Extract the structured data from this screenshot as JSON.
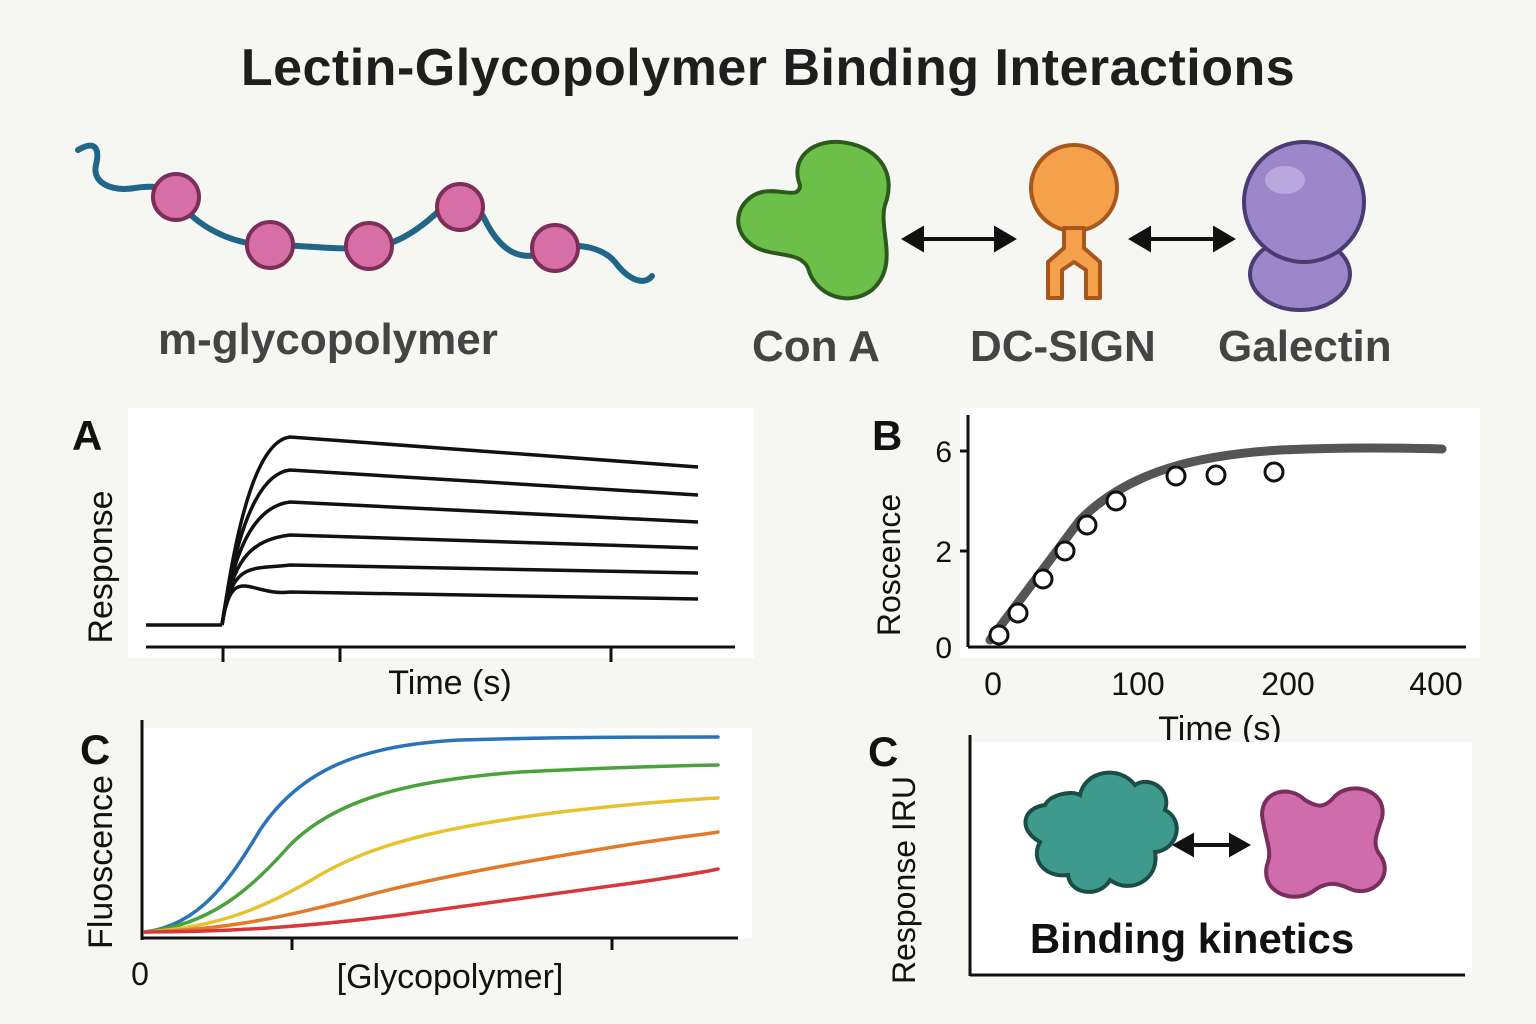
{
  "title": "Lectin-Glycopolymer Binding Interactions",
  "top": {
    "polymer_label": "m-glycopolymer",
    "lectins": [
      "Con A",
      "DC-SIGN",
      "Galectin"
    ]
  },
  "panel_a": {
    "letter": "A",
    "xlabel": "Time (s)",
    "ylabel": "Response"
  },
  "panel_b": {
    "letter": "B",
    "xlabel": "Time (s)",
    "ylabel": "Roscence",
    "xticks": [
      "0",
      "100",
      "200",
      "400"
    ],
    "yticks": [
      "0",
      "2",
      "6"
    ]
  },
  "panel_c": {
    "letter": "C",
    "xlabel": "[Glycopolymer]",
    "ylabel": "Fluoscence",
    "x0": "0"
  },
  "panel_d": {
    "letter": "C",
    "ylabel": "Response IRU",
    "caption": "Binding kinetics"
  },
  "colors": {
    "polymer_backbone": "#1f6688",
    "sugar_bead": "#d86ea6",
    "con_a": "#6cc04a",
    "dc_sign": "#f5a04a",
    "galectin": "#9b87c9",
    "teal_protein": "#3d9a8c",
    "pink_protein": "#cf6cab",
    "curve_blue": "#2a73b8",
    "curve_green": "#4aa23a",
    "curve_yellow": "#e8c22e",
    "curve_orange": "#e37a2a",
    "curve_red": "#d8383a"
  }
}
